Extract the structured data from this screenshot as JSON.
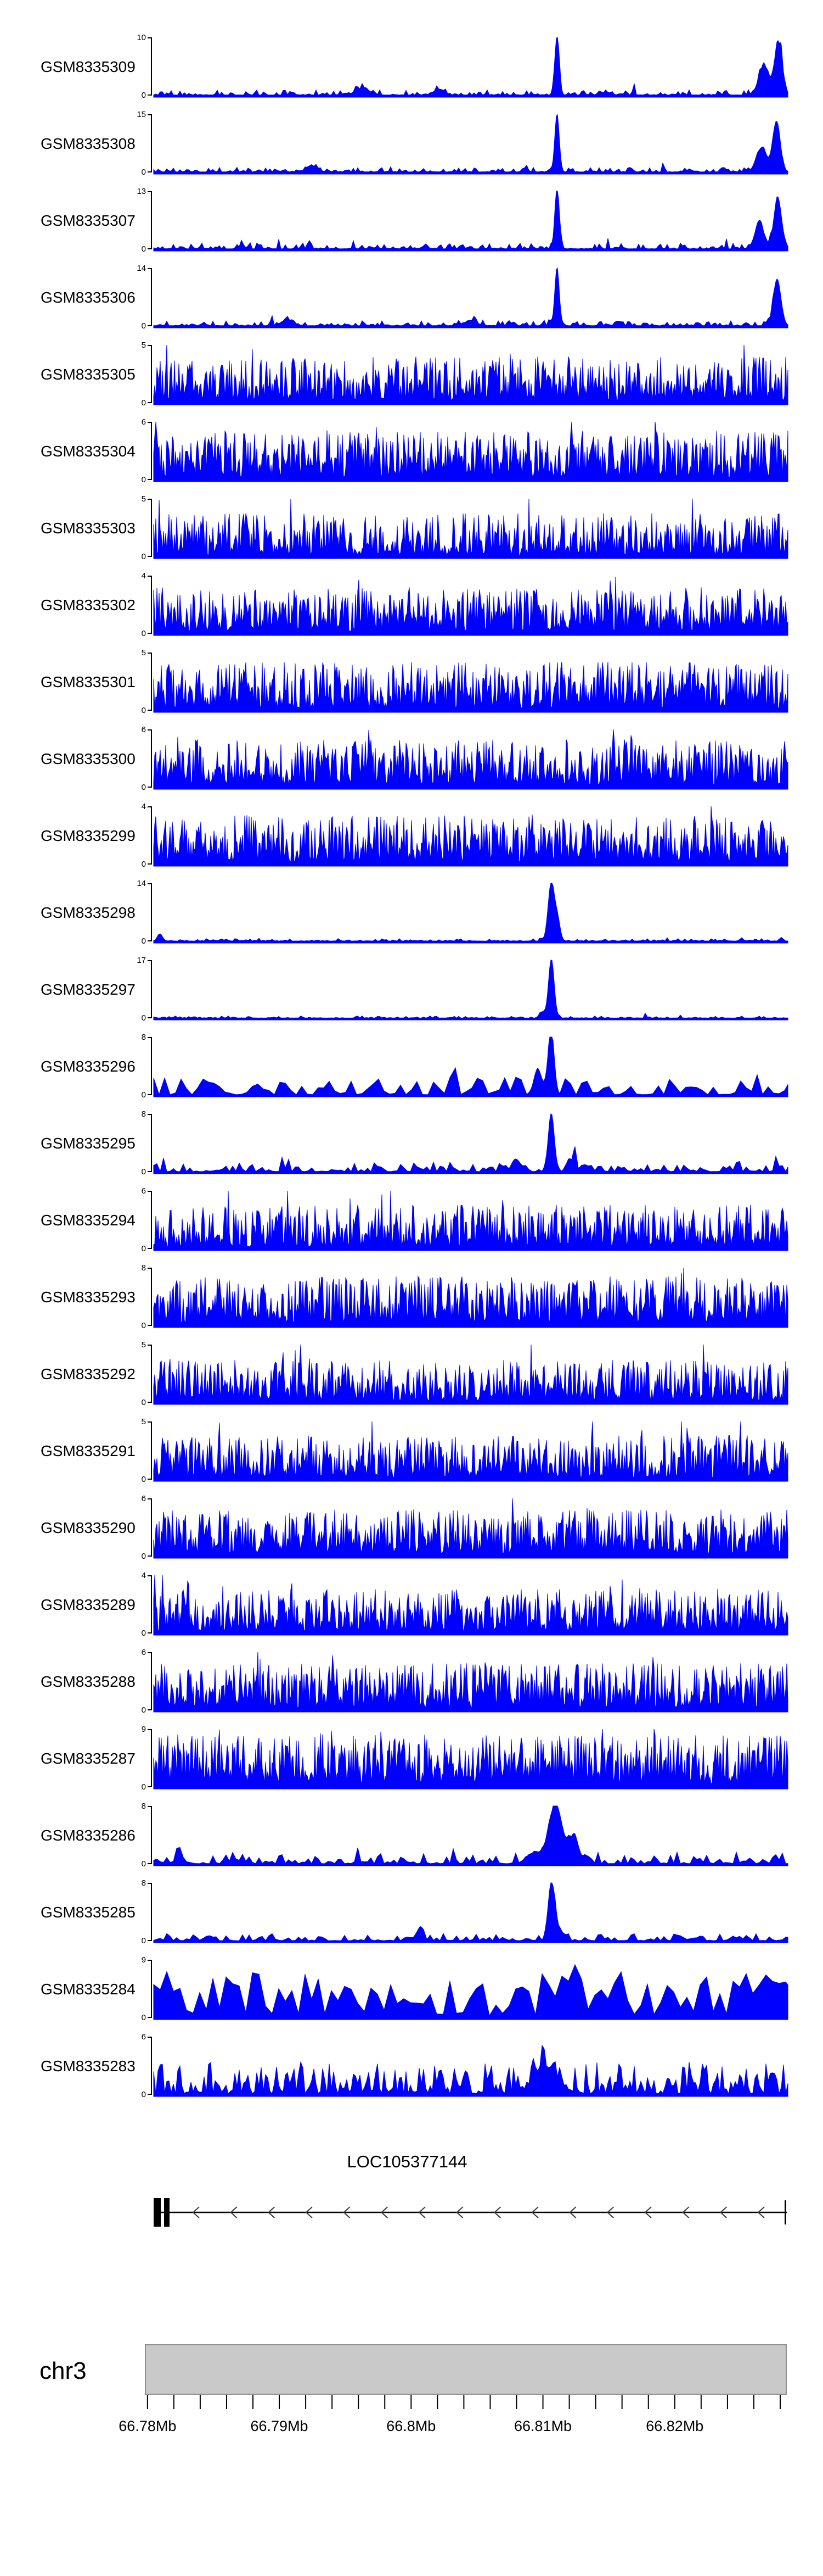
{
  "colors": {
    "signal": "#0000ff",
    "track_label": "#000000",
    "axis": "#000000",
    "gene": "#000000",
    "arrow": "#3c3c3c",
    "ruler_bar_fill": "#c9c9c9",
    "ruler_bar_border": "#909090",
    "background": "#ffffff"
  },
  "chart_data": {
    "type": "area",
    "description": "Genome browser coverage signal tracks (filled blue area plots) over chr3 around 66.78-66.83 Mb, with gene model LOC105377144 and chromosome coordinate ruler",
    "chromosome": "chr3",
    "x_axis": {
      "range_mb": [
        66.7798,
        66.8285
      ],
      "tick_labels": [
        "66.78Mb",
        "66.79Mb",
        "66.8Mb",
        "66.81Mb",
        "66.82Mb"
      ],
      "tick_values_mb": [
        66.78,
        66.79,
        66.8,
        66.81,
        66.82
      ],
      "minor_tick_step_mb": 0.002,
      "grid": false,
      "legend": "none"
    },
    "gene_track": {
      "name": "LOC105377144",
      "strand": "-",
      "arrow_count": 16
    },
    "tracks": [
      {
        "label": "GSM8335309",
        "y_max": "10",
        "y_min": "0",
        "pattern": "sparse-with-peaks",
        "render": {
          "seed": 101,
          "step": 2,
          "noise_base": 0.09,
          "noise_sharp": 3.2,
          "burst_p": 0.06,
          "burst_mult": 2.2,
          "floor": 0.01,
          "spikes": [
            {
              "x": 0.636,
              "h": 1,
              "w": 0.0035
            },
            {
              "x": 0.985,
              "h": 0.9,
              "w": 0.006
            },
            {
              "x": 0.962,
              "h": 0.5,
              "w": 0.008
            },
            {
              "x": 0.33,
              "h": 0.12,
              "w": 0.01
            },
            {
              "x": 0.45,
              "h": 0.1,
              "w": 0.008
            }
          ]
        }
      },
      {
        "label": "GSM8335308",
        "y_max": "15",
        "y_min": "0",
        "pattern": "sparse-with-peaks",
        "render": {
          "seed": 102,
          "step": 2,
          "noise_base": 0.08,
          "noise_sharp": 3.2,
          "burst_p": 0.05,
          "burst_mult": 2.2,
          "floor": 0.01,
          "spikes": [
            {
              "x": 0.636,
              "h": 1,
              "w": 0.0035
            },
            {
              "x": 0.982,
              "h": 0.85,
              "w": 0.006
            },
            {
              "x": 0.958,
              "h": 0.4,
              "w": 0.008
            },
            {
              "x": 0.25,
              "h": 0.1,
              "w": 0.008
            }
          ]
        }
      },
      {
        "label": "GSM8335307",
        "y_max": "13",
        "y_min": "0",
        "pattern": "sparse-with-peaks",
        "render": {
          "seed": 103,
          "step": 2,
          "noise_base": 0.1,
          "noise_sharp": 3.0,
          "burst_p": 0.05,
          "burst_mult": 2.0,
          "floor": 0.01,
          "spikes": [
            {
              "x": 0.636,
              "h": 1,
              "w": 0.0035
            },
            {
              "x": 0.984,
              "h": 0.88,
              "w": 0.006
            },
            {
              "x": 0.955,
              "h": 0.45,
              "w": 0.007
            }
          ]
        }
      },
      {
        "label": "GSM8335306",
        "y_max": "14",
        "y_min": "0",
        "pattern": "sparse-with-peaks",
        "render": {
          "seed": 104,
          "step": 2,
          "noise_base": 0.09,
          "noise_sharp": 3.1,
          "burst_p": 0.05,
          "burst_mult": 2.1,
          "floor": 0.01,
          "spikes": [
            {
              "x": 0.636,
              "h": 1,
              "w": 0.0035
            },
            {
              "x": 0.983,
              "h": 0.8,
              "w": 0.006
            },
            {
              "x": 0.21,
              "h": 0.1,
              "w": 0.009
            },
            {
              "x": 0.5,
              "h": 0.09,
              "w": 0.009
            }
          ]
        }
      },
      {
        "label": "GSM8335305",
        "y_max": "5",
        "y_min": "0",
        "pattern": "dense",
        "render": {
          "seed": 105,
          "step": 1,
          "noise_base": 0.75,
          "noise_sharp": 1.4,
          "burst_p": 0.03,
          "burst_mult": 1.5,
          "floor": 0.05,
          "spikes": []
        }
      },
      {
        "label": "GSM8335304",
        "y_max": "6",
        "y_min": "0",
        "pattern": "dense",
        "render": {
          "seed": 106,
          "step": 1,
          "noise_base": 0.8,
          "noise_sharp": 1.3,
          "burst_p": 0.03,
          "burst_mult": 1.4,
          "floor": 0.05,
          "spikes": []
        }
      },
      {
        "label": "GSM8335303",
        "y_max": "5",
        "y_min": "0",
        "pattern": "dense",
        "render": {
          "seed": 107,
          "step": 1,
          "noise_base": 0.72,
          "noise_sharp": 1.7,
          "burst_p": 0.05,
          "burst_mult": 1.7,
          "floor": 0.03,
          "spikes": []
        }
      },
      {
        "label": "GSM8335302",
        "y_max": "4",
        "y_min": "0",
        "pattern": "dense",
        "render": {
          "seed": 108,
          "step": 1,
          "noise_base": 0.76,
          "noise_sharp": 1.4,
          "burst_p": 0.03,
          "burst_mult": 1.5,
          "floor": 0.05,
          "spikes": []
        }
      },
      {
        "label": "GSM8335301",
        "y_max": "5",
        "y_min": "0",
        "pattern": "dense",
        "render": {
          "seed": 109,
          "step": 1,
          "noise_base": 0.8,
          "noise_sharp": 1.45,
          "burst_p": 0.04,
          "burst_mult": 1.5,
          "floor": 0.04,
          "spikes": []
        }
      },
      {
        "label": "GSM8335300",
        "y_max": "6",
        "y_min": "0",
        "pattern": "dense",
        "render": {
          "seed": 110,
          "step": 1,
          "noise_base": 0.78,
          "noise_sharp": 1.4,
          "burst_p": 0.03,
          "burst_mult": 1.5,
          "floor": 0.05,
          "spikes": []
        }
      },
      {
        "label": "GSM8335299",
        "y_max": "4",
        "y_min": "0",
        "pattern": "dense",
        "render": {
          "seed": 111,
          "step": 1,
          "noise_base": 0.8,
          "noise_sharp": 1.35,
          "burst_p": 0.03,
          "burst_mult": 1.4,
          "floor": 0.05,
          "spikes": []
        }
      },
      {
        "label": "GSM8335298",
        "y_max": "14",
        "y_min": "0",
        "pattern": "sparse-with-peaks",
        "render": {
          "seed": 112,
          "step": 2,
          "noise_base": 0.04,
          "noise_sharp": 3.6,
          "burst_p": 0.04,
          "burst_mult": 2.5,
          "floor": 0.008,
          "spikes": [
            {
              "x": 0.627,
              "h": 1,
              "w": 0.005
            },
            {
              "x": 0.637,
              "h": 0.35,
              "w": 0.004
            },
            {
              "x": 0.01,
              "h": 0.12,
              "w": 0.004
            }
          ]
        }
      },
      {
        "label": "GSM8335297",
        "y_max": "17",
        "y_min": "0",
        "pattern": "sparse-with-peaks",
        "render": {
          "seed": 113,
          "step": 2,
          "noise_base": 0.035,
          "noise_sharp": 3.6,
          "burst_p": 0.03,
          "burst_mult": 2.5,
          "floor": 0.006,
          "spikes": [
            {
              "x": 0.627,
              "h": 1,
              "w": 0.0045
            },
            {
              "x": 0.612,
              "h": 0.1,
              "w": 0.004
            }
          ]
        }
      },
      {
        "label": "GSM8335296",
        "y_max": "8",
        "y_min": "0",
        "pattern": "moderate-with-peak",
        "render": {
          "seed": 114,
          "step": 5,
          "noise_base": 0.3,
          "noise_sharp": 2.2,
          "burst_p": 0.05,
          "burst_mult": 1.8,
          "floor": 0.01,
          "spikes": [
            {
              "x": 0.627,
              "h": 1,
              "w": 0.0045
            },
            {
              "x": 0.605,
              "h": 0.3,
              "w": 0.006
            }
          ]
        }
      },
      {
        "label": "GSM8335295",
        "y_max": "8",
        "y_min": "0",
        "pattern": "sparse-with-peaks",
        "render": {
          "seed": 115,
          "step": 3,
          "noise_base": 0.16,
          "noise_sharp": 2.6,
          "burst_p": 0.05,
          "burst_mult": 1.8,
          "floor": 0.01,
          "spikes": [
            {
              "x": 0.627,
              "h": 1,
              "w": 0.0045
            },
            {
              "x": 0.66,
              "h": 0.2,
              "w": 0.006
            },
            {
              "x": 0.57,
              "h": 0.15,
              "w": 0.006
            }
          ]
        }
      },
      {
        "label": "GSM8335294",
        "y_max": "6",
        "y_min": "0",
        "pattern": "dense",
        "render": {
          "seed": 116,
          "step": 1,
          "noise_base": 0.72,
          "noise_sharp": 1.5,
          "burst_p": 0.04,
          "burst_mult": 1.6,
          "floor": 0.04,
          "spikes": []
        }
      },
      {
        "label": "GSM8335293",
        "y_max": "8",
        "y_min": "0",
        "pattern": "dense",
        "render": {
          "seed": 117,
          "step": 1,
          "noise_base": 0.8,
          "noise_sharp": 1.35,
          "burst_p": 0.03,
          "burst_mult": 1.4,
          "floor": 0.05,
          "spikes": []
        }
      },
      {
        "label": "GSM8335292",
        "y_max": "5",
        "y_min": "0",
        "pattern": "dense",
        "render": {
          "seed": 118,
          "step": 1,
          "noise_base": 0.7,
          "noise_sharp": 1.5,
          "burst_p": 0.04,
          "burst_mult": 1.6,
          "floor": 0.04,
          "spikes": []
        }
      },
      {
        "label": "GSM8335291",
        "y_max": "5",
        "y_min": "0",
        "pattern": "dense",
        "render": {
          "seed": 119,
          "step": 1,
          "noise_base": 0.72,
          "noise_sharp": 1.5,
          "burst_p": 0.04,
          "burst_mult": 1.5,
          "floor": 0.04,
          "spikes": []
        }
      },
      {
        "label": "GSM8335290",
        "y_max": "6",
        "y_min": "0",
        "pattern": "dense",
        "render": {
          "seed": 120,
          "step": 1,
          "noise_base": 0.76,
          "noise_sharp": 1.4,
          "burst_p": 0.03,
          "burst_mult": 1.5,
          "floor": 0.05,
          "spikes": []
        }
      },
      {
        "label": "GSM8335289",
        "y_max": "4",
        "y_min": "0",
        "pattern": "dense",
        "render": {
          "seed": 121,
          "step": 1,
          "noise_base": 0.72,
          "noise_sharp": 1.45,
          "burst_p": 0.04,
          "burst_mult": 1.5,
          "floor": 0.04,
          "spikes": []
        }
      },
      {
        "label": "GSM8335288",
        "y_max": "6",
        "y_min": "0",
        "pattern": "dense",
        "render": {
          "seed": 122,
          "step": 1,
          "noise_base": 0.76,
          "noise_sharp": 1.4,
          "burst_p": 0.03,
          "burst_mult": 1.5,
          "floor": 0.05,
          "spikes": []
        }
      },
      {
        "label": "GSM8335287",
        "y_max": "9",
        "y_min": "0",
        "pattern": "dense",
        "render": {
          "seed": 123,
          "step": 1,
          "noise_base": 0.85,
          "noise_sharp": 1.25,
          "burst_p": 0.03,
          "burst_mult": 1.3,
          "floor": 0.06,
          "spikes": []
        }
      },
      {
        "label": "GSM8335286",
        "y_max": "8",
        "y_min": "0",
        "pattern": "moderate-with-peak",
        "render": {
          "seed": 124,
          "step": 3,
          "noise_base": 0.2,
          "noise_sharp": 2.4,
          "burst_p": 0.05,
          "burst_mult": 1.8,
          "floor": 0.01,
          "spikes": [
            {
              "x": 0.633,
              "h": 1,
              "w": 0.011
            },
            {
              "x": 0.662,
              "h": 0.45,
              "w": 0.007
            },
            {
              "x": 0.6,
              "h": 0.2,
              "w": 0.006
            }
          ]
        }
      },
      {
        "label": "GSM8335285",
        "y_max": "8",
        "y_min": "0",
        "pattern": "sparse-with-peaks",
        "render": {
          "seed": 125,
          "step": 3,
          "noise_base": 0.13,
          "noise_sharp": 2.7,
          "burst_p": 0.05,
          "burst_mult": 1.9,
          "floor": 0.008,
          "spikes": [
            {
              "x": 0.627,
              "h": 1,
              "w": 0.005
            },
            {
              "x": 0.64,
              "h": 0.2,
              "w": 0.005
            },
            {
              "x": 0.42,
              "h": 0.12,
              "w": 0.006
            }
          ]
        }
      },
      {
        "label": "GSM8335284",
        "y_max": "9",
        "y_min": "0",
        "pattern": "dense-triangles",
        "render": {
          "seed": 126,
          "step": 6,
          "noise_base": 0.78,
          "noise_sharp": 1.2,
          "burst_p": 0.04,
          "burst_mult": 1.4,
          "floor": 0.04,
          "spikes": []
        }
      },
      {
        "label": "GSM8335283",
        "y_max": "6",
        "y_min": "0",
        "pattern": "dense-with-peak",
        "render": {
          "seed": 127,
          "step": 2,
          "noise_base": 0.55,
          "noise_sharp": 1.8,
          "burst_p": 0.05,
          "burst_mult": 1.7,
          "floor": 0.02,
          "spikes": [
            {
              "x": 0.62,
              "h": 0.45,
              "w": 0.018
            }
          ]
        }
      }
    ]
  }
}
